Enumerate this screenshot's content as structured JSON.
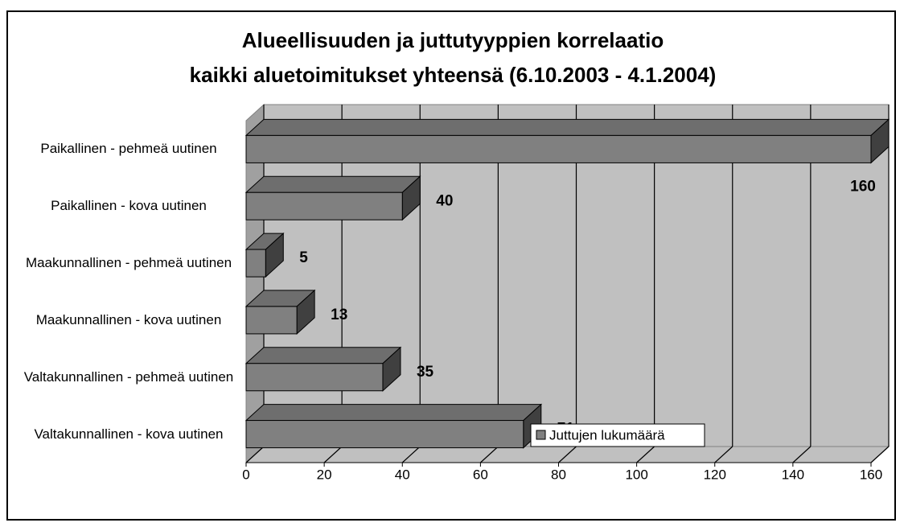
{
  "chart_data": {
    "type": "bar",
    "orientation": "horizontal",
    "three_d": true,
    "title": "Alueellisuuden ja juttutyyppien korrelaatio",
    "subtitle": "kaikki aluetoimitukset yhteensä (6.10.2003 - 4.1.2004)",
    "categories": [
      "Paikallinen - pehmeä uutinen",
      "Paikallinen - kova uutinen",
      "Maakunnallinen - pehmeä uutinen",
      "Maakunnallinen - kova uutinen",
      "Valtakunnallinen - pehmeä uutinen",
      "Valtakunnallinen - kova uutinen"
    ],
    "series": [
      {
        "name": "Juttujen lukumäärä",
        "color": "#808080",
        "values": [
          160,
          40,
          5,
          13,
          35,
          71
        ]
      }
    ],
    "xlim": [
      0,
      160
    ],
    "xticks": [
      0,
      20,
      40,
      60,
      80,
      100,
      120,
      140,
      160
    ],
    "grid": true,
    "legend": "bottom"
  }
}
